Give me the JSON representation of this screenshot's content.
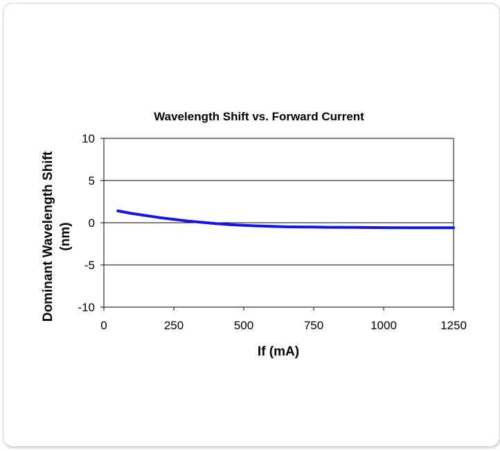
{
  "chart_data": {
    "type": "line",
    "title": "Wavelength Shift vs. Forward Current",
    "xlabel": "If (mA)",
    "ylabel_lines": [
      "Dominant Wavelength Shift",
      "(nm)"
    ],
    "xlim": [
      0,
      1250
    ],
    "ylim": [
      -10,
      10
    ],
    "x_ticks": [
      0,
      250,
      500,
      750,
      1000,
      1250
    ],
    "y_ticks": [
      10,
      5,
      0,
      -5,
      -10
    ],
    "grid": "horizontal",
    "legend": "none",
    "series": [
      {
        "color": "#1414e6",
        "x": [
          50,
          100,
          150,
          200,
          250,
          300,
          350,
          400,
          450,
          500,
          550,
          600,
          650,
          700,
          750,
          800,
          900,
          1000,
          1100,
          1200,
          1250
        ],
        "y": [
          1.4,
          1.1,
          0.85,
          0.6,
          0.4,
          0.2,
          0.05,
          -0.1,
          -0.22,
          -0.3,
          -0.38,
          -0.43,
          -0.48,
          -0.5,
          -0.52,
          -0.54,
          -0.56,
          -0.58,
          -0.59,
          -0.6,
          -0.6
        ]
      }
    ]
  }
}
